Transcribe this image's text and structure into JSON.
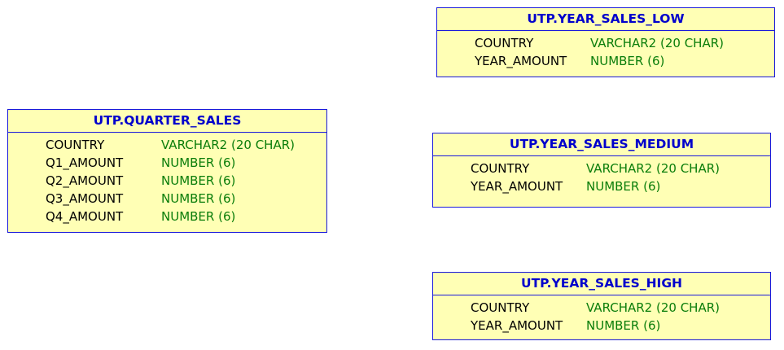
{
  "diagram": {
    "tables": [
      {
        "name": "UTP.YEAR_SALES_LOW",
        "columns": [
          {
            "name": "COUNTRY",
            "type": "VARCHAR2 (20 CHAR)"
          },
          {
            "name": "YEAR_AMOUNT",
            "type": "NUMBER (6)"
          }
        ]
      },
      {
        "name": "UTP.QUARTER_SALES",
        "columns": [
          {
            "name": "COUNTRY",
            "type": "VARCHAR2 (20 CHAR)"
          },
          {
            "name": "Q1_AMOUNT",
            "type": "NUMBER (6)"
          },
          {
            "name": "Q2_AMOUNT",
            "type": "NUMBER (6)"
          },
          {
            "name": "Q3_AMOUNT",
            "type": "NUMBER (6)"
          },
          {
            "name": "Q4_AMOUNT",
            "type": "NUMBER (6)"
          }
        ]
      },
      {
        "name": "UTP.YEAR_SALES_MEDIUM",
        "columns": [
          {
            "name": "COUNTRY",
            "type": "VARCHAR2 (20 CHAR)"
          },
          {
            "name": "YEAR_AMOUNT",
            "type": "NUMBER (6)"
          }
        ]
      },
      {
        "name": "UTP.YEAR_SALES_HIGH",
        "columns": [
          {
            "name": "COUNTRY",
            "type": "VARCHAR2 (20 CHAR)"
          },
          {
            "name": "YEAR_AMOUNT",
            "type": "NUMBER (6)"
          }
        ]
      }
    ],
    "colors": {
      "box_fill": "#ffffb5",
      "box_border": "#1a1adb",
      "header_text": "#0000cc",
      "column_name_text": "#000000",
      "column_type_text": "#0a7d0a"
    }
  }
}
